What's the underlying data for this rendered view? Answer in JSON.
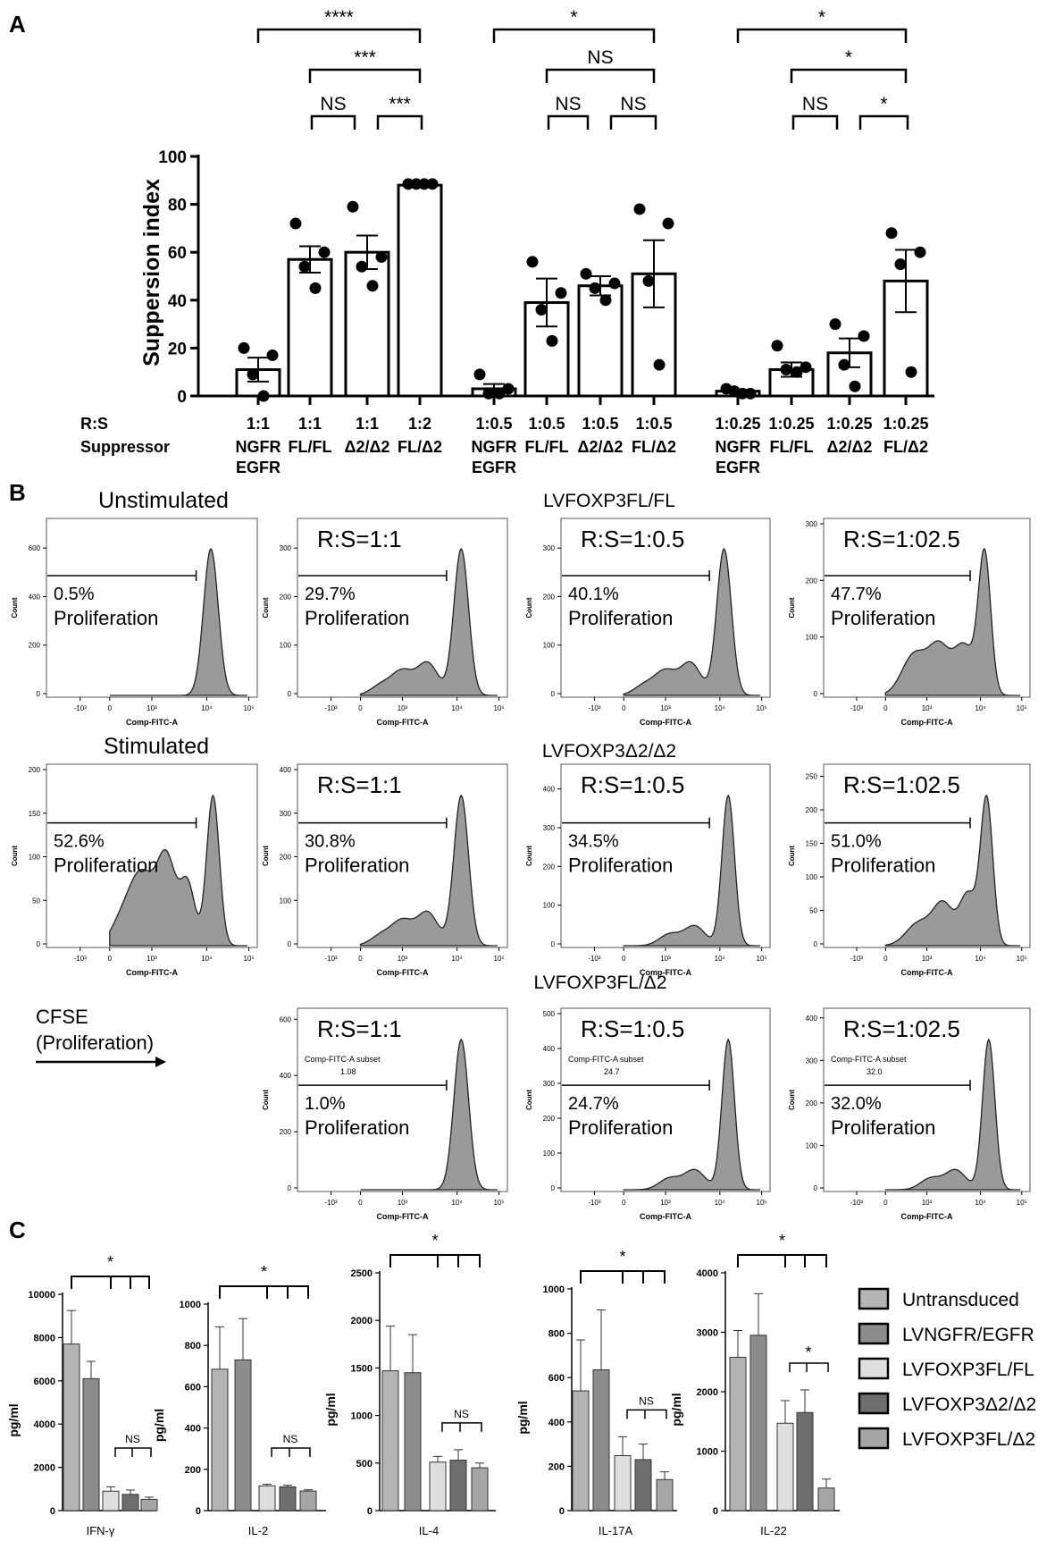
{
  "panels": {
    "a": "A",
    "b": "B",
    "c": "C"
  },
  "chart_data": [
    {
      "id": "A",
      "type": "bar",
      "ylabel": "Suppersion index",
      "ylim": [
        0,
        100
      ],
      "yticks": [
        0,
        20,
        40,
        60,
        80,
        100
      ],
      "row_labels": {
        "ratio": "R:S",
        "suppressor": "Suppressor"
      },
      "groups": [
        {
          "ratio": "1:1",
          "suppressor": "NGFR EGFR",
          "mean": 11,
          "sem": 5,
          "points": [
            20,
            17,
            9,
            0
          ]
        },
        {
          "ratio": "1:1",
          "suppressor": "FL/FL",
          "mean": 57,
          "sem": 5.5,
          "points": [
            72,
            60,
            54,
            45
          ]
        },
        {
          "ratio": "1:1",
          "suppressor": "Δ2/Δ2",
          "mean": 60,
          "sem": 7,
          "points": [
            79,
            58,
            54,
            46
          ]
        },
        {
          "ratio": "1:2",
          "suppressor": "FL/Δ2",
          "mean": 88,
          "sem": 0.8,
          "points": [
            88.5,
            88.5,
            88.5,
            88.5
          ]
        },
        {
          "ratio": "1:0.5",
          "suppressor": "NGFR EGFR",
          "mean": 3,
          "sem": 2,
          "points": [
            9,
            3,
            1,
            1
          ]
        },
        {
          "ratio": "1:0.5",
          "suppressor": "FL/FL",
          "mean": 39,
          "sem": 10,
          "points": [
            56,
            43,
            36,
            23
          ]
        },
        {
          "ratio": "1:0.5",
          "suppressor": "Δ2/Δ2",
          "mean": 46,
          "sem": 4,
          "points": [
            51,
            47,
            45,
            40
          ]
        },
        {
          "ratio": "1:0.5",
          "suppressor": "FL/Δ2",
          "mean": 51,
          "sem": 14,
          "points": [
            78,
            72,
            48,
            13
          ]
        },
        {
          "ratio": "1:0.25",
          "suppressor": "NGFR EGFR",
          "mean": 2,
          "sem": 0.6,
          "points": [
            3,
            2,
            1,
            1
          ]
        },
        {
          "ratio": "1:0.25",
          "suppressor": "FL/FL",
          "mean": 11,
          "sem": 3,
          "points": [
            21,
            12,
            11,
            10
          ]
        },
        {
          "ratio": "1:0.25",
          "suppressor": "Δ2/Δ2",
          "mean": 18,
          "sem": 6,
          "points": [
            30,
            25,
            13,
            4
          ]
        },
        {
          "ratio": "1:0.25",
          "suppressor": "FL/Δ2",
          "mean": 48,
          "sem": 13,
          "points": [
            68,
            60,
            55,
            10
          ]
        }
      ],
      "significance": [
        {
          "from": 0,
          "to": 3,
          "level": 0,
          "label": "****"
        },
        {
          "from": 1,
          "to": 3,
          "level": 1,
          "label": "***"
        },
        {
          "from": 1,
          "to": 2,
          "level": 2,
          "label": "NS"
        },
        {
          "from": 2,
          "to": 3,
          "level": 2,
          "label": "***"
        },
        {
          "from": 4,
          "to": 7,
          "level": 0,
          "label": "*"
        },
        {
          "from": 5,
          "to": 7,
          "level": 1,
          "label": "NS"
        },
        {
          "from": 5,
          "to": 6,
          "level": 2,
          "label": "NS"
        },
        {
          "from": 6,
          "to": 7,
          "level": 2,
          "label": "NS"
        },
        {
          "from": 8,
          "to": 11,
          "level": 0,
          "label": "*"
        },
        {
          "from": 9,
          "to": 11,
          "level": 1,
          "label": "*"
        },
        {
          "from": 9,
          "to": 10,
          "level": 2,
          "label": "NS"
        },
        {
          "from": 10,
          "to": 11,
          "level": 2,
          "label": "*"
        }
      ]
    },
    {
      "id": "B",
      "type": "histogram",
      "xlabel": "Comp-FITC-A",
      "ylabel": "Count",
      "xticks": [
        "-10³",
        "0",
        "10³",
        "10⁴",
        "10⁵"
      ],
      "gate_label": "Proliferation",
      "row_titles": [
        "Unstimulated",
        "Stimulated"
      ],
      "column_titles": [
        "LVFOXP3FL/FL",
        "LVFOXP3Δ2/Δ2",
        "LVFOXP3FL/Δ2"
      ],
      "cfse_label": [
        "CFSE",
        "(Proliferation)"
      ],
      "subset_label": "Comp-FITC-A subset",
      "plots": [
        {
          "row": 0,
          "col": 0,
          "percent": "0.5%",
          "ratio": "",
          "subset_value": "",
          "ymax": 700,
          "yticks": [
            0,
            200,
            400,
            600
          ],
          "shape": "narrow"
        },
        {
          "row": 0,
          "col": 1,
          "percent": "29.7%",
          "ratio": "R:S=1:1",
          "subset_value": "",
          "ymax": 350,
          "yticks": [
            0,
            100,
            200,
            300
          ],
          "shape": "shoulder"
        },
        {
          "row": 0,
          "col": 2,
          "percent": "40.1%",
          "ratio": "R:S=1:0.5",
          "subset_value": "",
          "ymax": 350,
          "yticks": [
            0,
            100,
            200,
            300
          ],
          "shape": "shoulder"
        },
        {
          "row": 0,
          "col": 3,
          "percent": "47.7%",
          "ratio": "R:S=1:02.5",
          "subset_value": "",
          "ymax": 300,
          "yticks": [
            0,
            100,
            200,
            300
          ],
          "shape": "broad"
        },
        {
          "row": 1,
          "col": 0,
          "percent": "52.6%",
          "ratio": "",
          "subset_value": "",
          "ymax": 200,
          "yticks": [
            0,
            50,
            100,
            150,
            200
          ],
          "shape": "stim"
        },
        {
          "row": 1,
          "col": 1,
          "percent": "30.8%",
          "ratio": "R:S=1:1",
          "subset_value": "",
          "ymax": 400,
          "yticks": [
            0,
            100,
            200,
            300,
            400
          ],
          "shape": "shoulder"
        },
        {
          "row": 1,
          "col": 2,
          "percent": "34.5%",
          "ratio": "R:S=1:0.5",
          "subset_value": "",
          "ymax": 450,
          "yticks": [
            0,
            100,
            200,
            300,
            400
          ],
          "shape": "low"
        },
        {
          "row": 1,
          "col": 3,
          "percent": "51.0%",
          "ratio": "R:S=1:02.5",
          "subset_value": "",
          "ymax": 260,
          "yticks": [
            0,
            50,
            100,
            150,
            200,
            250
          ],
          "shape": "broad2"
        },
        {
          "row": 2,
          "col": 1,
          "percent": "1.0%",
          "ratio": "R:S=1:1",
          "subset_value": "1.08",
          "ymax": 620,
          "yticks": [
            0,
            200,
            400,
            600
          ],
          "shape": "narrow"
        },
        {
          "row": 2,
          "col": 2,
          "percent": "24.7%",
          "ratio": "R:S=1:0.5",
          "subset_value": "24.7",
          "ymax": 500,
          "yticks": [
            0,
            100,
            200,
            300,
            400,
            500
          ],
          "shape": "low"
        },
        {
          "row": 2,
          "col": 3,
          "percent": "32.0%",
          "ratio": "R:S=1:02.5",
          "subset_value": "32.0",
          "ymax": 410,
          "yticks": [
            0,
            100,
            200,
            300,
            400
          ],
          "shape": "low"
        }
      ]
    },
    {
      "id": "C",
      "type": "bar",
      "ylabel": "pg/ml",
      "legend": [
        {
          "name": "Untransduced",
          "color": "#b4b4b4"
        },
        {
          "name": "LVNGFR/EGFR",
          "color": "#8c8c8c"
        },
        {
          "name": "LVFOXP3FL/FL",
          "color": "#dedede"
        },
        {
          "name": "LVFOXP3Δ2/Δ2",
          "color": "#6e6e6e"
        },
        {
          "name": "LVFOXP3FL/Δ2",
          "color": "#a6a6a6"
        }
      ],
      "charts": [
        {
          "title": "IFN-γ",
          "ymax": 10000,
          "yticks": [
            0,
            2000,
            4000,
            6000,
            8000,
            10000
          ],
          "values": [
            7700,
            6100,
            900,
            750,
            520
          ],
          "errors": [
            1550,
            800,
            200,
            200,
            100
          ],
          "top_label": "*",
          "sub_label": "NS"
        },
        {
          "title": "IL-2",
          "ymax": 1000,
          "yticks": [
            0,
            200,
            400,
            600,
            800,
            1000
          ],
          "values": [
            685,
            730,
            120,
            115,
            95
          ],
          "errors": [
            205,
            200,
            8,
            8,
            6
          ],
          "top_label": "*",
          "sub_label": "NS"
        },
        {
          "title": "IL-4",
          "ymax": 2500,
          "yticks": [
            0,
            500,
            1000,
            1500,
            2000,
            2500
          ],
          "values": [
            1470,
            1450,
            510,
            530,
            450
          ],
          "errors": [
            470,
            400,
            60,
            110,
            50
          ],
          "top_label": "*",
          "sub_label": "NS"
        },
        {
          "title": "IL-17A",
          "ymax": 1000,
          "yticks": [
            0,
            200,
            400,
            600,
            800,
            1000
          ],
          "values": [
            540,
            635,
            248,
            230,
            140
          ],
          "errors": [
            230,
            270,
            85,
            70,
            35
          ],
          "top_label": "*",
          "sub_label": "NS"
        },
        {
          "title": "IL-22",
          "ymax": 4000,
          "yticks": [
            0,
            1000,
            2000,
            3000,
            4000
          ],
          "values": [
            2580,
            2950,
            1470,
            1650,
            380
          ],
          "errors": [
            450,
            700,
            380,
            380,
            150
          ],
          "top_label": "*",
          "sub_label": "*"
        }
      ]
    }
  ]
}
